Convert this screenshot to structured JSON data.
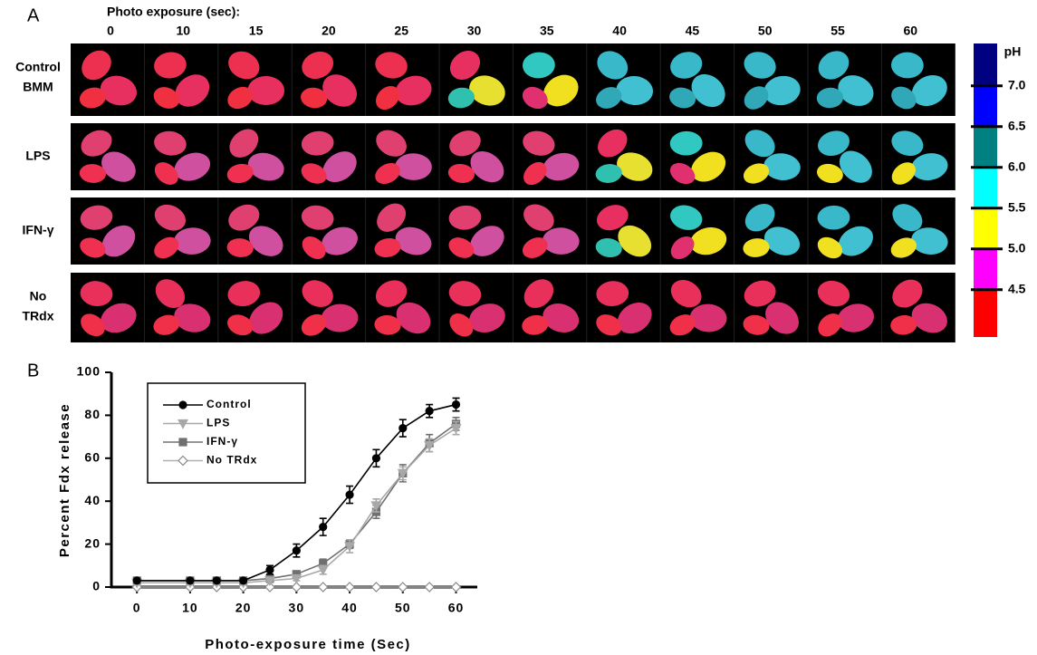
{
  "panel_a": {
    "label": "A",
    "header": "Photo exposure (sec):",
    "times": [
      "0",
      "10",
      "15",
      "20",
      "25",
      "30",
      "35",
      "40",
      "45",
      "50",
      "55",
      "60"
    ],
    "rows": [
      [
        "Control",
        "BMM"
      ],
      [
        "LPS"
      ],
      [
        "IFN-γ"
      ],
      [
        "No",
        "TRdx"
      ]
    ],
    "colorbar": {
      "title": "pH",
      "lim": [
        3.92,
        7.52
      ],
      "ticks": [
        {
          "value": 7,
          "label": "7.0"
        },
        {
          "value": 6.5,
          "label": "6.5"
        },
        {
          "value": 6,
          "label": "6.0"
        },
        {
          "value": 5.5,
          "label": "5.5"
        },
        {
          "value": 5,
          "label": "5.0"
        },
        {
          "value": 4.5,
          "label": "4.5"
        }
      ],
      "colors": [
        "#000080",
        "#0000ff",
        "#008080",
        "#00ffff",
        "#ffff00",
        "#ff00ff",
        "#ff0000"
      ]
    }
  },
  "chart_data": {
    "type": "line",
    "panel_label": "B",
    "xlabel": "Photo-exposure time (Sec)",
    "ylabel": "Percent Fdx release",
    "x": [
      0,
      10,
      15,
      20,
      25,
      30,
      35,
      40,
      45,
      50,
      55,
      60
    ],
    "xlim": [
      -4.8,
      64
    ],
    "ylim": [
      0,
      100
    ],
    "xticks": [
      0,
      10,
      20,
      30,
      40,
      50,
      60
    ],
    "yticks": [
      0,
      20,
      40,
      60,
      80,
      100
    ],
    "legend": "upper left",
    "series": [
      {
        "name": "Control",
        "color": "#000000",
        "marker": "circle",
        "fill": "#000000",
        "values": [
          3,
          3,
          3,
          3,
          8,
          17,
          28,
          43,
          60,
          74,
          82,
          85
        ],
        "errors": [
          0,
          0,
          0,
          0,
          2,
          3,
          4,
          4,
          4,
          4,
          3,
          3
        ]
      },
      {
        "name": "LPS",
        "color": "#a8a8a8",
        "marker": "triangle-down",
        "fill": "#a8a8a8",
        "values": [
          2,
          2,
          2,
          2,
          3,
          4,
          8,
          19,
          38,
          53,
          66,
          74
        ],
        "errors": [
          1,
          1,
          1,
          1,
          1,
          1,
          2,
          3,
          3,
          3,
          3,
          3
        ]
      },
      {
        "name": "IFN-γ",
        "color": "#707070",
        "marker": "square",
        "fill": "#707070",
        "values": [
          3,
          3,
          3,
          3,
          4,
          6,
          11,
          20,
          35,
          53,
          67,
          76
        ],
        "errors": [
          1,
          1,
          1,
          1,
          1,
          1,
          2,
          2,
          3,
          4,
          4,
          3
        ]
      },
      {
        "name": "No TRdx",
        "color": "#b0b0b0",
        "marker": "diamond",
        "fill": "#ffffff",
        "values": [
          0,
          0,
          0,
          0,
          0,
          0,
          0,
          0,
          0,
          0,
          0,
          0
        ],
        "errors": [
          0,
          0,
          0,
          0,
          0,
          0,
          0,
          0,
          0,
          0,
          0,
          0
        ]
      }
    ]
  }
}
